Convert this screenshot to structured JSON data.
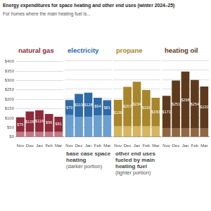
{
  "title": "Energy expenditures for space heating and other end uses (winter 2024–25)",
  "subtitle": "For homes where the main heating fuel is...",
  "legend_notes": [
    "(darker portion)",
    "(lighter portion)"
  ],
  "chart_data": [
    {
      "type": "bar",
      "title": "natural gas",
      "categories": [
        "Nov",
        "Dec",
        "Jan",
        "Feb",
        "Mar"
      ],
      "stacked": true,
      "data_labels": true,
      "grid": true,
      "ylim": [
        0,
        400
      ],
      "yticks": [
        {
          "value": 0,
          "label": "$0"
        },
        {
          "value": 50,
          "label": "$50"
        },
        {
          "value": 100,
          "label": "$100"
        },
        {
          "value": 150,
          "label": "$150"
        },
        {
          "value": 200,
          "label": "$200"
        },
        {
          "value": 250,
          "label": "$250"
        },
        {
          "value": 300,
          "label": "$300"
        },
        {
          "value": 350,
          "label": "$350"
        },
        {
          "value": 400,
          "label": "$400"
        }
      ],
      "series": [
        {
          "name": "base case space heating",
          "color": "#8e2b3a",
          "values": [
            79,
            109,
            116,
            96,
            81
          ],
          "value_labels": [
            "$79",
            "$109",
            "$116",
            "$96",
            "$81"
          ]
        },
        {
          "name": "other end uses fueled by main heating fuel",
          "color": "#c27781",
          "values": [
            26,
            26,
            26,
            26,
            26
          ]
        }
      ]
    },
    {
      "type": "bar",
      "title": "electricity",
      "categories": [
        "Nov",
        "Dec",
        "Jan",
        "Feb",
        "Mar"
      ],
      "stacked": true,
      "data_labels": true,
      "grid": true,
      "tick_labels": "x",
      "ylim": [
        0,
        400
      ],
      "yticks": [
        {
          "value": 0,
          "label": "$0"
        },
        {
          "value": 50,
          "label": "$50"
        },
        {
          "value": 100,
          "label": "$100"
        },
        {
          "value": 150,
          "label": "$150"
        },
        {
          "value": 200,
          "label": "$200"
        },
        {
          "value": 250,
          "label": "$250"
        },
        {
          "value": 300,
          "label": "$300"
        },
        {
          "value": 350,
          "label": "$350"
        },
        {
          "value": 400,
          "label": "$400"
        }
      ],
      "series": [
        {
          "name": "base case space heating",
          "color": "#2e6aa6",
          "values": [
            79,
            119,
            128,
            94,
            81
          ],
          "value_labels": [
            "$79",
            "$119",
            "$128",
            "$94",
            "$81"
          ]
        },
        {
          "name": "other end uses fueled by main heating fuel",
          "color": "#6a9fcf",
          "values": [
            114,
            106,
            104,
            111,
            111
          ]
        }
      ]
    },
    {
      "type": "bar",
      "title": "propane",
      "categories": [
        "Nov",
        "Dec",
        "Jan",
        "Feb",
        "Mar"
      ],
      "stacked": true,
      "data_labels": true,
      "grid": true,
      "tick_labels": "x",
      "ylim": [
        0,
        400
      ],
      "yticks": [
        {
          "value": 0,
          "label": "$0"
        },
        {
          "value": 50,
          "label": "$50"
        },
        {
          "value": 100,
          "label": "$100"
        },
        {
          "value": 150,
          "label": "$150"
        },
        {
          "value": 200,
          "label": "$200"
        },
        {
          "value": 250,
          "label": "$250"
        },
        {
          "value": 300,
          "label": "$300"
        },
        {
          "value": 350,
          "label": "$350"
        },
        {
          "value": 400,
          "label": "$400"
        }
      ],
      "series": [
        {
          "name": "base case space heating",
          "color": "#a8862b",
          "values": [
            139,
            207,
            234,
            191,
            150
          ],
          "value_labels": [
            "$139",
            "$207",
            "$234",
            "$191",
            "$150"
          ]
        },
        {
          "name": "other end uses fueled by main heating fuel",
          "color": "#d4b660",
          "values": [
            55,
            55,
            55,
            55,
            55
          ]
        }
      ]
    },
    {
      "type": "bar",
      "title": "heating oil",
      "categories": [
        "Nov",
        "Dec",
        "Jan",
        "Feb",
        "Mar"
      ],
      "stacked": true,
      "data_labels": true,
      "grid": true,
      "tick_labels": "x",
      "ylim": [
        0,
        400
      ],
      "yticks": [
        {
          "value": 0,
          "label": "$0"
        },
        {
          "value": 50,
          "label": "$50"
        },
        {
          "value": 100,
          "label": "$100"
        },
        {
          "value": 150,
          "label": "$150"
        },
        {
          "value": 200,
          "label": "$200"
        },
        {
          "value": 250,
          "label": "$250"
        },
        {
          "value": 300,
          "label": "$300"
        },
        {
          "value": 350,
          "label": "$350"
        },
        {
          "value": 400,
          "label": "$400"
        }
      ],
      "series": [
        {
          "name": "base case space heating",
          "color": "#5e3a1c",
          "values": [
            171,
            251,
            298,
            254,
            220
          ],
          "value_labels": [
            "$171",
            "$251",
            "$298",
            "$254",
            "$220"
          ]
        },
        {
          "name": "other end uses fueled by main heating fuel",
          "color": "#8f6842",
          "values": [
            44,
            44,
            44,
            44,
            44
          ]
        }
      ]
    }
  ]
}
